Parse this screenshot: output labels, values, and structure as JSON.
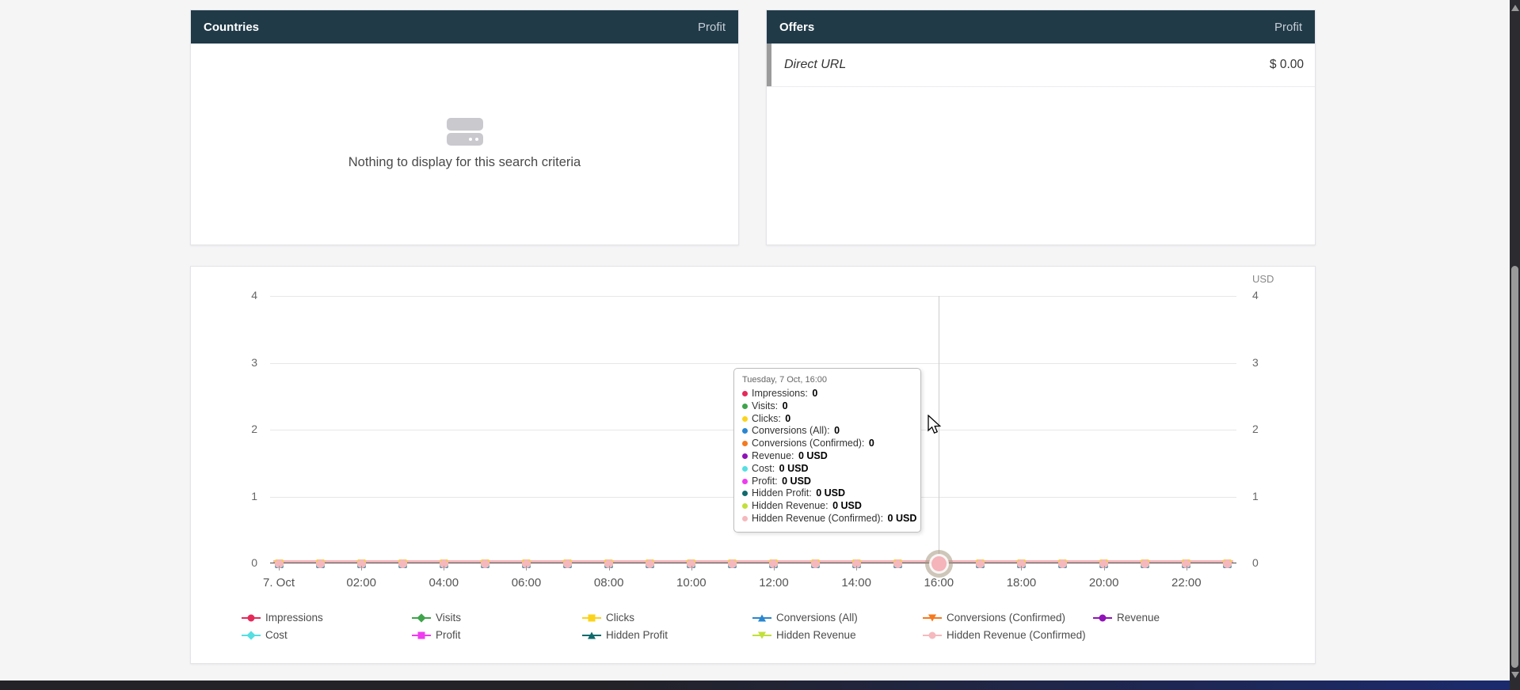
{
  "countries_panel": {
    "title": "Countries",
    "column": "Profit",
    "empty_text": "Nothing to display for this search criteria"
  },
  "offers_panel": {
    "title": "Offers",
    "column": "Profit",
    "rows": [
      {
        "name": "Direct URL",
        "profit": "$ 0.00"
      }
    ]
  },
  "chart": {
    "unit_label": "USD"
  },
  "tooltip": {
    "title": "Tuesday, 7 Oct, 16:00",
    "rows": [
      {
        "label": "Impressions",
        "value": "0",
        "color": "#e52a5a"
      },
      {
        "label": "Visits",
        "value": "0",
        "color": "#3fa44b"
      },
      {
        "label": "Clicks",
        "value": "0",
        "color": "#fbd31b"
      },
      {
        "label": "Conversions (All)",
        "value": "0",
        "color": "#2a86d0"
      },
      {
        "label": "Conversions (Confirmed)",
        "value": "0",
        "color": "#f5791e"
      },
      {
        "label": "Revenue",
        "value": "0 USD",
        "color": "#9013b8"
      },
      {
        "label": "Cost",
        "value": "0 USD",
        "color": "#55dfe2"
      },
      {
        "label": "Profit",
        "value": "0 USD",
        "color": "#ef3cf0"
      },
      {
        "label": "Hidden Profit",
        "value": "0 USD",
        "color": "#0f6a6c"
      },
      {
        "label": "Hidden Revenue",
        "value": "0 USD",
        "color": "#c2df3a"
      },
      {
        "label": "Hidden Revenue (Confirmed)",
        "value": "0 USD",
        "color": "#f5b9be"
      }
    ]
  },
  "chart_data": {
    "type": "line",
    "title": "",
    "unit": "USD",
    "x_axis": {
      "date": "7 Oct",
      "points": [
        "00:00",
        "01:00",
        "02:00",
        "03:00",
        "04:00",
        "05:00",
        "06:00",
        "07:00",
        "08:00",
        "09:00",
        "10:00",
        "11:00",
        "12:00",
        "13:00",
        "14:00",
        "15:00",
        "16:00",
        "17:00",
        "18:00",
        "19:00",
        "20:00",
        "21:00",
        "22:00",
        "23:00"
      ],
      "tick_labels": [
        "7. Oct",
        "02:00",
        "04:00",
        "06:00",
        "08:00",
        "10:00",
        "12:00",
        "14:00",
        "16:00",
        "18:00",
        "20:00",
        "22:00"
      ]
    },
    "y_axis": {
      "range": [
        0,
        4
      ],
      "ticks_desc": [
        "4",
        "3",
        "2",
        "1",
        "0"
      ],
      "sides": "both",
      "grid": true
    },
    "hover": {
      "x_index": 16,
      "time": "16:00"
    },
    "legend_position": "bottom",
    "series": [
      {
        "name": "Impressions",
        "color": "#e52a5a",
        "marker": "circle",
        "values": [
          0,
          0,
          0,
          0,
          0,
          0,
          0,
          0,
          0,
          0,
          0,
          0,
          0,
          0,
          0,
          0,
          0,
          0,
          0,
          0,
          0,
          0,
          0,
          0
        ]
      },
      {
        "name": "Visits",
        "color": "#3fa44b",
        "marker": "diamond",
        "values": [
          0,
          0,
          0,
          0,
          0,
          0,
          0,
          0,
          0,
          0,
          0,
          0,
          0,
          0,
          0,
          0,
          0,
          0,
          0,
          0,
          0,
          0,
          0,
          0
        ]
      },
      {
        "name": "Clicks",
        "color": "#fbd31b",
        "marker": "square",
        "values": [
          0,
          0,
          0,
          0,
          0,
          0,
          0,
          0,
          0,
          0,
          0,
          0,
          0,
          0,
          0,
          0,
          0,
          0,
          0,
          0,
          0,
          0,
          0,
          0
        ]
      },
      {
        "name": "Conversions (All)",
        "color": "#2a86d0",
        "marker": "tri-up",
        "values": [
          0,
          0,
          0,
          0,
          0,
          0,
          0,
          0,
          0,
          0,
          0,
          0,
          0,
          0,
          0,
          0,
          0,
          0,
          0,
          0,
          0,
          0,
          0,
          0
        ]
      },
      {
        "name": "Conversions (Confirmed)",
        "color": "#f5791e",
        "marker": "tri-down",
        "values": [
          0,
          0,
          0,
          0,
          0,
          0,
          0,
          0,
          0,
          0,
          0,
          0,
          0,
          0,
          0,
          0,
          0,
          0,
          0,
          0,
          0,
          0,
          0,
          0
        ]
      },
      {
        "name": "Revenue",
        "color": "#9013b8",
        "marker": "circle",
        "values": [
          0,
          0,
          0,
          0,
          0,
          0,
          0,
          0,
          0,
          0,
          0,
          0,
          0,
          0,
          0,
          0,
          0,
          0,
          0,
          0,
          0,
          0,
          0,
          0
        ]
      },
      {
        "name": "Cost",
        "color": "#55dfe2",
        "marker": "diamond",
        "values": [
          0,
          0,
          0,
          0,
          0,
          0,
          0,
          0,
          0,
          0,
          0,
          0,
          0,
          0,
          0,
          0,
          0,
          0,
          0,
          0,
          0,
          0,
          0,
          0
        ]
      },
      {
        "name": "Profit",
        "color": "#ef3cf0",
        "marker": "square",
        "values": [
          0,
          0,
          0,
          0,
          0,
          0,
          0,
          0,
          0,
          0,
          0,
          0,
          0,
          0,
          0,
          0,
          0,
          0,
          0,
          0,
          0,
          0,
          0,
          0
        ]
      },
      {
        "name": "Hidden Profit",
        "color": "#0f6a6c",
        "marker": "tri-up",
        "values": [
          0,
          0,
          0,
          0,
          0,
          0,
          0,
          0,
          0,
          0,
          0,
          0,
          0,
          0,
          0,
          0,
          0,
          0,
          0,
          0,
          0,
          0,
          0,
          0
        ]
      },
      {
        "name": "Hidden Revenue",
        "color": "#c2df3a",
        "marker": "tri-down",
        "values": [
          0,
          0,
          0,
          0,
          0,
          0,
          0,
          0,
          0,
          0,
          0,
          0,
          0,
          0,
          0,
          0,
          0,
          0,
          0,
          0,
          0,
          0,
          0,
          0
        ]
      },
      {
        "name": "Hidden Revenue (Confirmed)",
        "color": "#f5b9be",
        "marker": "circle",
        "values": [
          0,
          0,
          0,
          0,
          0,
          0,
          0,
          0,
          0,
          0,
          0,
          0,
          0,
          0,
          0,
          0,
          0,
          0,
          0,
          0,
          0,
          0,
          0,
          0
        ]
      }
    ]
  }
}
